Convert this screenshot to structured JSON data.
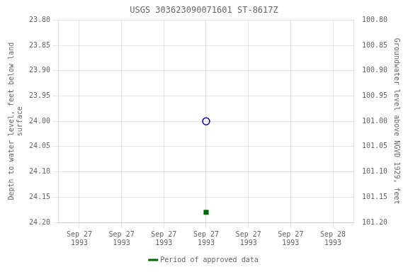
{
  "chart_data": {
    "type": "scatter",
    "title": "USGS 303623090071601 ST-8617Z",
    "categories": [
      "Sep 27\n1993",
      "Sep 27\n1993",
      "Sep 27\n1993",
      "Sep 27\n1993",
      "Sep 27\n1993",
      "Sep 27\n1993",
      "Sep 28\n1993"
    ],
    "series": [
      {
        "values": [
          null,
          null,
          null,
          24.0,
          null,
          null,
          null
        ],
        "color": "#0000cc",
        "marker": "circle"
      },
      {
        "name": "Period of approved data",
        "values": [
          null,
          null,
          null,
          24.18,
          null,
          null,
          null
        ],
        "color": "#006600",
        "marker": "square"
      }
    ],
    "ylabel": "Depth to water level, feet below land\nsurface",
    "y2label": "Groundwater level above NGVD 1929, feet",
    "ylim": [
      24.2,
      23.8
    ],
    "yticks": [
      {
        "value": 23.8,
        "label": "23.80"
      },
      {
        "value": 23.85,
        "label": "23.85"
      },
      {
        "value": 23.9,
        "label": "23.90"
      },
      {
        "value": 23.95,
        "label": "23.95"
      },
      {
        "value": 24.0,
        "label": "24.00"
      },
      {
        "value": 24.05,
        "label": "24.05"
      },
      {
        "value": 24.1,
        "label": "24.10"
      },
      {
        "value": 24.15,
        "label": "24.15"
      },
      {
        "value": 24.2,
        "label": "24.20"
      }
    ],
    "y2lim": [
      101.2,
      100.8
    ],
    "y2ticks": [
      {
        "value": 100.8,
        "label": "100.80"
      },
      {
        "value": 100.85,
        "label": "100.85"
      },
      {
        "value": 100.9,
        "label": "100.90"
      },
      {
        "value": 100.95,
        "label": "100.95"
      },
      {
        "value": 101.0,
        "label": "101.00"
      },
      {
        "value": 101.05,
        "label": "101.05"
      },
      {
        "value": 101.1,
        "label": "101.10"
      },
      {
        "value": 101.15,
        "label": "101.15"
      },
      {
        "value": 101.2,
        "label": "101.20"
      }
    ],
    "grid": true,
    "legend": "bottom"
  }
}
